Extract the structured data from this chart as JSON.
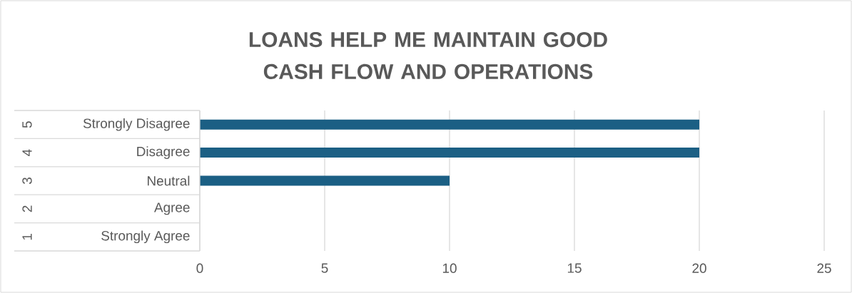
{
  "chart_data": {
    "type": "bar",
    "orientation": "horizontal",
    "title": "LOANS HELP ME MAINTAIN GOOD CASH FLOW AND OPERATIONS",
    "categories": [
      "Strongly Disagree",
      "Disagree",
      "Neutral",
      "Agree",
      "Strongly Agree"
    ],
    "values": [
      20,
      20,
      10,
      0,
      0
    ],
    "color": "#1b5f84",
    "annotations": [
      "5",
      "4",
      "3",
      "2",
      "1"
    ],
    "xlim": [
      0,
      25
    ],
    "xticks": [
      0,
      5,
      10,
      15,
      20,
      25
    ],
    "grid": "x"
  }
}
